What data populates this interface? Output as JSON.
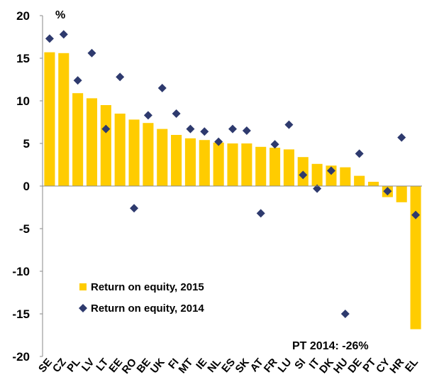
{
  "chart_data": {
    "type": "bar",
    "unit_label": "%",
    "annotation": "PT 2014: -26%",
    "categories": [
      "SE",
      "CZ",
      "PL",
      "LV",
      "LT",
      "EE",
      "RO",
      "BE",
      "UK",
      "FI",
      "MT",
      "IE",
      "NL",
      "ES",
      "SK",
      "AT",
      "FR",
      "LU",
      "SI",
      "IT",
      "DK",
      "HU",
      "DE",
      "PT",
      "CY",
      "HR",
      "EL"
    ],
    "series": [
      {
        "name": "Return on equity, 2015",
        "type": "bar",
        "color": "#ffcc00",
        "values": [
          15.7,
          15.6,
          10.9,
          10.3,
          9.5,
          8.5,
          7.8,
          7.4,
          6.7,
          6.0,
          5.6,
          5.4,
          5.1,
          5.0,
          5.0,
          4.6,
          4.5,
          4.3,
          3.4,
          2.6,
          2.4,
          2.2,
          1.2,
          0.5,
          -1.3,
          -1.9,
          -16.8
        ]
      },
      {
        "name": "Return on equity, 2014",
        "type": "scatter",
        "color": "#2e3a6e",
        "values": [
          17.3,
          17.8,
          12.4,
          15.6,
          6.7,
          12.8,
          -2.6,
          8.3,
          11.5,
          8.5,
          6.7,
          6.4,
          5.2,
          6.7,
          6.5,
          -3.2,
          4.9,
          7.2,
          1.3,
          -0.3,
          1.8,
          -15.0,
          3.8,
          null,
          -0.6,
          5.7,
          -3.4
        ]
      }
    ],
    "ylim": [
      -20,
      20
    ],
    "yticks": [
      -20,
      -15,
      -10,
      -5,
      0,
      5,
      10,
      15,
      20
    ],
    "legend": "lower-left"
  }
}
